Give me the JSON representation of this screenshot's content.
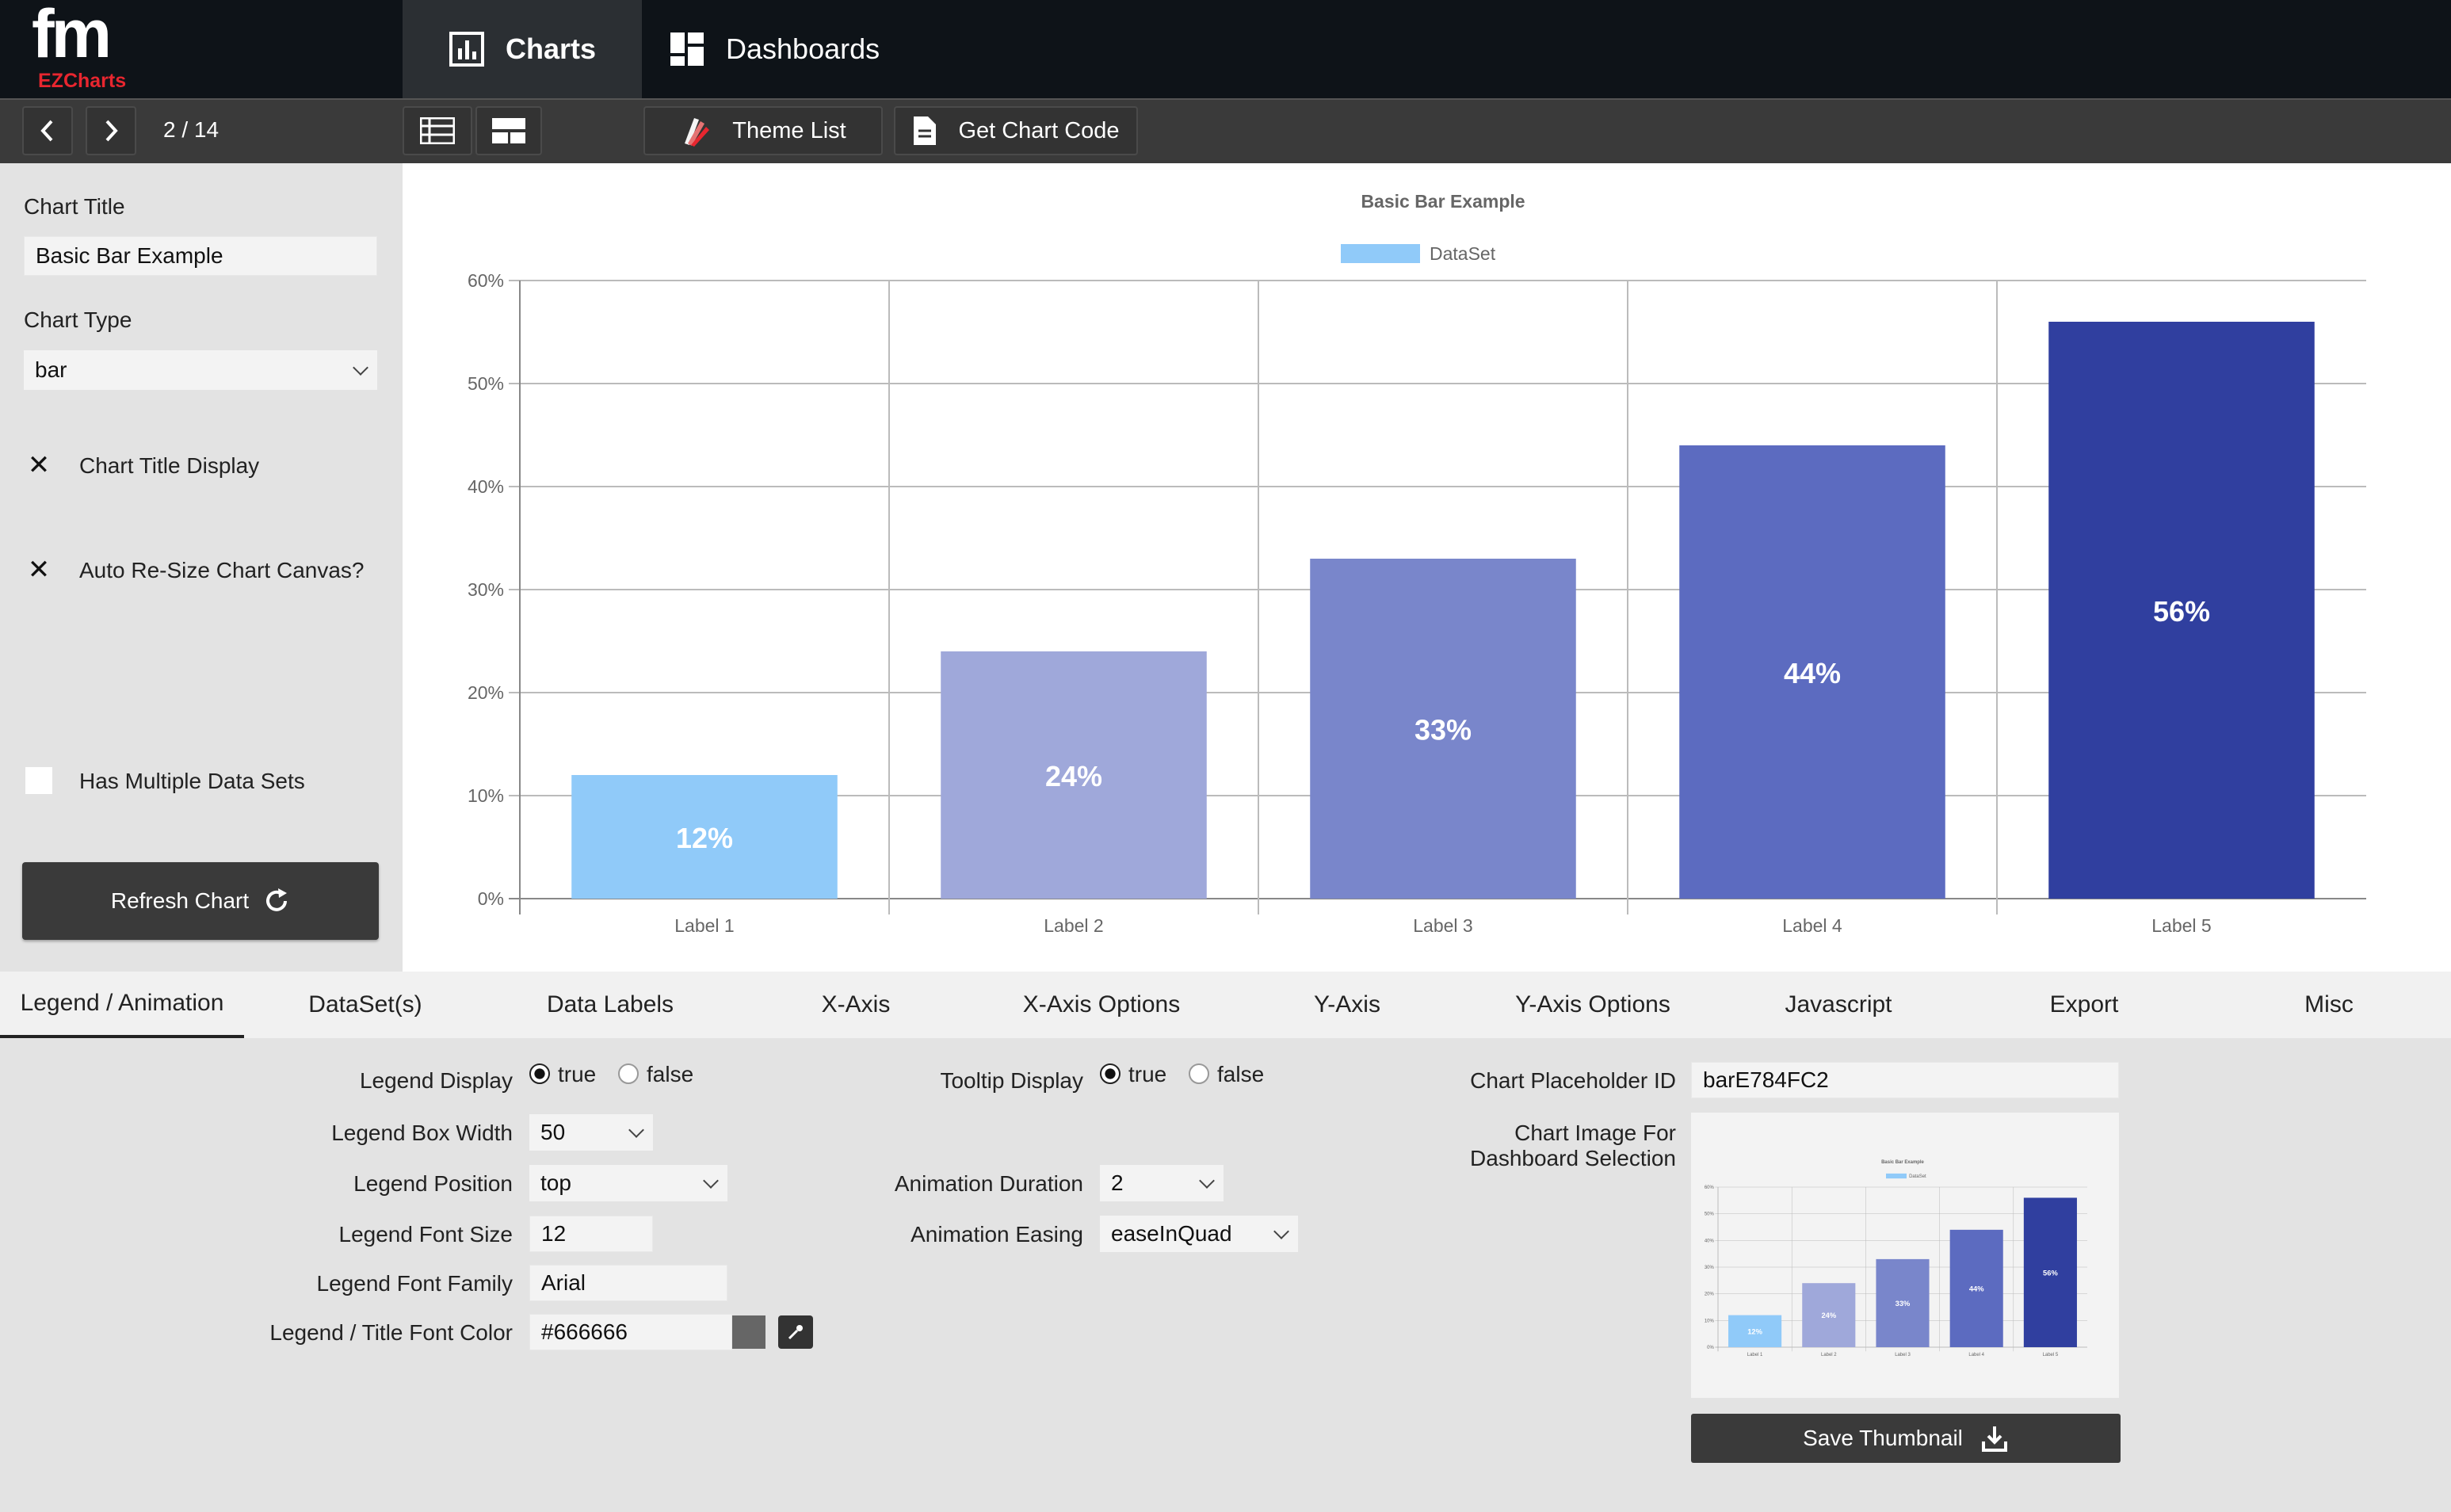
{
  "app": {
    "logo_mark": "fm",
    "logo_text": "EZCharts",
    "brand_color": "#e8262f"
  },
  "nav": {
    "charts_label": "Charts",
    "dashboards_label": "Dashboards"
  },
  "toolbar": {
    "pager": "2 / 14",
    "theme_list_label": "Theme List",
    "get_code_label": "Get Chart Code"
  },
  "left": {
    "chart_title_label": "Chart Title",
    "chart_title_value": "Basic Bar Example",
    "chart_type_label": "Chart Type",
    "chart_type_value": "bar",
    "title_display_label": "Chart Title Display",
    "title_display_mark": "✕",
    "auto_resize_label": "Auto Re-Size Chart Canvas?",
    "auto_resize_mark": "✕",
    "multi_dataset_label": "Has Multiple Data Sets",
    "refresh_label": "Refresh Chart"
  },
  "chart_data": {
    "type": "bar",
    "title": "Basic Bar Example",
    "legend": [
      "DataSet"
    ],
    "legend_position": "top",
    "categories": [
      "Label 1",
      "Label 2",
      "Label 3",
      "Label 4",
      "Label 5"
    ],
    "values": [
      12,
      24,
      33,
      44,
      56
    ],
    "data_labels": [
      "12%",
      "24%",
      "33%",
      "44%",
      "56%"
    ],
    "colors": [
      "#90caf9",
      "#9fa8da",
      "#7986cb",
      "#5c6bc0",
      "#303f9f"
    ],
    "legend_color": "#90caf9",
    "ylim": [
      0,
      60
    ],
    "yticks": [
      "0%",
      "10%",
      "20%",
      "30%",
      "40%",
      "50%",
      "60%"
    ],
    "grid": true
  },
  "tabs": [
    "Legend / Animation",
    "DataSet(s)",
    "Data Labels",
    "X-Axis",
    "X-Axis Options",
    "Y-Axis",
    "Y-Axis Options",
    "Javascript",
    "Export",
    "Misc"
  ],
  "form": {
    "legend_display_label": "Legend Display",
    "true_label": "true",
    "false_label": "false",
    "legend_box_width_label": "Legend Box Width",
    "legend_box_width_value": "50",
    "legend_position_label": "Legend Position",
    "legend_position_value": "top",
    "legend_font_size_label": "Legend Font Size",
    "legend_font_size_value": "12",
    "legend_font_family_label": "Legend Font Family",
    "legend_font_family_value": "Arial",
    "font_color_label": "Legend / Title Font Color",
    "font_color_value": "#666666",
    "tooltip_display_label": "Tooltip Display",
    "animation_duration_label": "Animation Duration",
    "animation_duration_value": "2",
    "animation_easing_label": "Animation Easing",
    "animation_easing_value": "easeInQuad",
    "placeholder_label": "Chart Placeholder ID",
    "placeholder_value": "barE784FC2",
    "image_label_1": "Chart Image For",
    "image_label_2": "Dashboard Selection",
    "save_thumb_label": "Save Thumbnail"
  }
}
